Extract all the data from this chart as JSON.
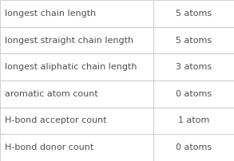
{
  "rows": [
    [
      "longest chain length",
      "5 atoms"
    ],
    [
      "longest straight chain length",
      "5 atoms"
    ],
    [
      "longest aliphatic chain length",
      "3 atoms"
    ],
    [
      "aromatic atom count",
      "0 atoms"
    ],
    [
      "H-bond acceptor count",
      "1 atom"
    ],
    [
      "H-bond donor count",
      "0 atoms"
    ]
  ],
  "col_split": 0.655,
  "bg_color": "#ffffff",
  "border_color": "#c0c0c0",
  "text_color_left": "#505050",
  "text_color_right": "#505050",
  "font_size": 8.0
}
